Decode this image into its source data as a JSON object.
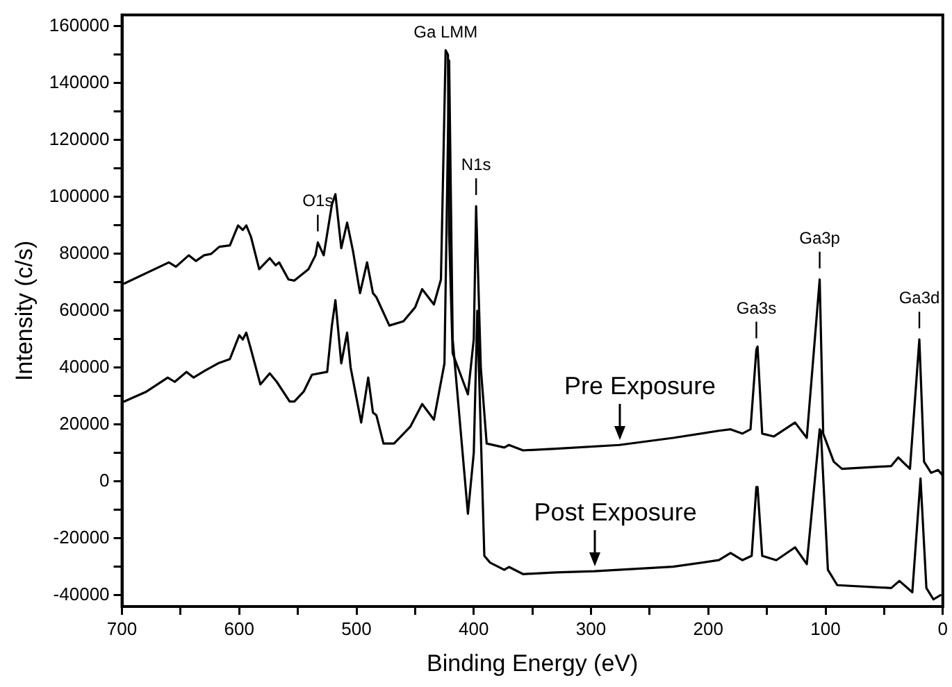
{
  "chart_data": {
    "type": "line",
    "xlabel": "Binding Energy (eV)",
    "ylabel": "Intensity (c/s)",
    "xlim": [
      700,
      0
    ],
    "xticks": [
      700,
      {
        "value": 650,
        "label": null
      },
      600,
      {
        "value": 550,
        "label": null
      },
      500,
      {
        "value": 450,
        "label": null
      },
      400,
      {
        "value": 350,
        "label": null
      },
      300,
      {
        "value": 250,
        "label": null
      },
      200,
      {
        "value": 150,
        "label": null
      },
      100,
      {
        "value": 50,
        "label": null
      },
      0
    ],
    "ylim": [
      -44000,
      164000
    ],
    "yticks": [
      -40000,
      {
        "value": -30000,
        "label": null
      },
      -20000,
      {
        "value": -10000,
        "label": null
      },
      0,
      {
        "value": 10000,
        "label": null
      },
      20000,
      {
        "value": 30000,
        "label": null
      },
      40000,
      {
        "value": 50000,
        "label": null
      },
      60000,
      {
        "value": 70000,
        "label": null
      },
      80000,
      {
        "value": 90000,
        "label": null
      },
      100000,
      {
        "value": 110000,
        "label": null
      },
      120000,
      {
        "value": 130000,
        "label": null
      },
      140000,
      {
        "value": 150000,
        "label": null
      },
      160000
    ],
    "grid": false,
    "legend": false,
    "marker": "none",
    "line_style": "solid",
    "series": [
      {
        "name": "Pre Exposure",
        "color": "#000000",
        "x": [
          698,
          660,
          654,
          643,
          637,
          630,
          624,
          617,
          608,
          601,
          597,
          594,
          590,
          583,
          574,
          569,
          566,
          558,
          553,
          541,
          535,
          533,
          528,
          521,
          518,
          513,
          508,
          503,
          497,
          491,
          486,
          483,
          472,
          460,
          450,
          444,
          434,
          428,
          424,
          422,
          421,
          418,
          405,
          400,
          398,
          394,
          389,
          374,
          370,
          358,
          330,
          276,
          230,
          191,
          181,
          171,
          164,
          159,
          158,
          154,
          144,
          126,
          116,
          105,
          102,
          93,
          86,
          44,
          38,
          28,
          20,
          16,
          10,
          4,
          0
        ],
        "values": [
          69600,
          77000,
          75500,
          79500,
          77500,
          79500,
          80000,
          82500,
          83000,
          90000,
          88400,
          90000,
          86000,
          74600,
          78500,
          76000,
          77000,
          71000,
          70600,
          74600,
          79500,
          84000,
          79500,
          97300,
          101000,
          82000,
          91000,
          81000,
          66200,
          77000,
          66200,
          64700,
          54800,
          56300,
          61200,
          67600,
          62200,
          71000,
          151600,
          150000,
          87000,
          45000,
          30600,
          50000,
          96800,
          40000,
          13300,
          11900,
          12800,
          10900,
          11500,
          12800,
          15300,
          17800,
          18300,
          16800,
          18300,
          46400,
          47400,
          16800,
          15800,
          20700,
          15300,
          71000,
          16800,
          6900,
          4400,
          5400,
          8400,
          4400,
          49900,
          6900,
          3000,
          4000,
          2000
        ]
      },
      {
        "name": "Post Exposure",
        "color": "#000000",
        "x": [
          698,
          679,
          661,
          655,
          645,
          639,
          629,
          618,
          608,
          600,
          597,
          594,
          590,
          582,
          574,
          568,
          557,
          553,
          545,
          538,
          525,
          521,
          518,
          513,
          508,
          505,
          496,
          490,
          486,
          483,
          477,
          468,
          454,
          444,
          434,
          425,
          421,
          418,
          405,
          400,
          397,
          391,
          386,
          374,
          370,
          358,
          330,
          297,
          230,
          191,
          181,
          171,
          163,
          159,
          158,
          154,
          142,
          126,
          116,
          105,
          104,
          98,
          90,
          44,
          37,
          26,
          19,
          14,
          8,
          2
        ],
        "values": [
          28100,
          31600,
          36500,
          35000,
          38500,
          36500,
          39000,
          41500,
          43000,
          51400,
          49900,
          52300,
          46400,
          34100,
          38000,
          35000,
          28100,
          28100,
          31600,
          37500,
          38500,
          54800,
          63700,
          41500,
          52300,
          40000,
          20700,
          36500,
          24200,
          23200,
          13300,
          13300,
          19300,
          27200,
          21700,
          41500,
          148000,
          50000,
          -11400,
          10000,
          60000,
          -26200,
          -28600,
          -31100,
          -30100,
          -32600,
          -32000,
          -31600,
          -30000,
          -27700,
          -25200,
          -27700,
          -26200,
          -2000,
          -2000,
          -26200,
          -27700,
          -23200,
          -29100,
          18300,
          17800,
          -31100,
          -36500,
          -37500,
          -35000,
          -39000,
          1000,
          -37500,
          -41500,
          -40000
        ]
      }
    ],
    "annotations": [
      {
        "text": "O1s",
        "x": 533,
        "y": 84000
      },
      {
        "text": "Ga LMM",
        "x": 424,
        "y": 151600
      },
      {
        "text": "N1s",
        "x": 398,
        "y": 96800
      },
      {
        "text": "Ga3s",
        "x": 159,
        "y": 46400
      },
      {
        "text": "Ga3p",
        "x": 105,
        "y": 71000
      },
      {
        "text": "Ga3d",
        "x": 20,
        "y": 49900
      }
    ]
  }
}
